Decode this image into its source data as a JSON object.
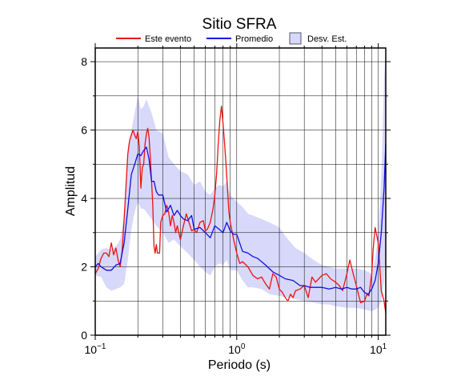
{
  "chart_data": {
    "type": "line",
    "title": "Sitio SFRA",
    "xlabel": "Periodo (s)",
    "ylabel": "Amplitud",
    "xscale": "log",
    "xlim": [
      0.1,
      11.3
    ],
    "ylim": [
      0,
      8.4
    ],
    "grid": true,
    "legend_position": "top",
    "x_ticks": [
      {
        "value": 0.1,
        "base": "10",
        "exp": "−1"
      },
      {
        "value": 1,
        "base": "10",
        "exp": "0"
      },
      {
        "value": 10,
        "base": "10",
        "exp": "1"
      }
    ],
    "y_ticks": [
      {
        "value": 0,
        "label": "0"
      },
      {
        "value": 2,
        "label": "2"
      },
      {
        "value": 4,
        "label": "4"
      },
      {
        "value": 6,
        "label": "6"
      },
      {
        "value": 8,
        "label": "8"
      }
    ],
    "legend": {
      "event": "Este evento",
      "mean": "Promedio",
      "std": "Desv. Est."
    },
    "colors": {
      "event": "#ee1111",
      "mean": "#1111dd",
      "std_fill": "#d8d8fa",
      "std_edge": "#555577",
      "grid": "#000000"
    },
    "series": [
      {
        "name": "Este evento",
        "x": [
          0.1,
          0.105,
          0.11,
          0.115,
          0.12,
          0.125,
          0.13,
          0.135,
          0.14,
          0.145,
          0.15,
          0.155,
          0.16,
          0.165,
          0.17,
          0.175,
          0.18,
          0.185,
          0.19,
          0.195,
          0.2,
          0.205,
          0.21,
          0.215,
          0.22,
          0.225,
          0.23,
          0.235,
          0.24,
          0.245,
          0.25,
          0.255,
          0.26,
          0.265,
          0.27,
          0.275,
          0.28,
          0.285,
          0.29,
          0.3,
          0.31,
          0.32,
          0.33,
          0.34,
          0.35,
          0.36,
          0.37,
          0.38,
          0.4,
          0.42,
          0.44,
          0.46,
          0.48,
          0.5,
          0.52,
          0.55,
          0.58,
          0.6,
          0.62,
          0.65,
          0.68,
          0.7,
          0.72,
          0.74,
          0.76,
          0.78,
          0.8,
          0.82,
          0.84,
          0.86,
          0.88,
          0.9,
          0.92,
          0.95,
          1.0,
          1.05,
          1.1,
          1.2,
          1.3,
          1.4,
          1.5,
          1.6,
          1.7,
          1.8,
          1.9,
          2.0,
          2.1,
          2.2,
          2.3,
          2.4,
          2.5,
          2.6,
          2.8,
          3.0,
          3.2,
          3.4,
          3.6,
          3.8,
          4.0,
          4.3,
          4.6,
          5.0,
          5.3,
          5.6,
          6.0,
          6.3,
          6.6,
          7.0,
          7.5,
          8.0,
          8.3,
          8.6,
          8.8,
          9.0,
          9.2,
          9.5,
          10.0,
          10.5,
          11.0,
          11.3
        ],
        "values": [
          1.8,
          1.95,
          2.25,
          2.4,
          2.4,
          2.3,
          2.7,
          2.35,
          2.55,
          2.2,
          2.0,
          2.5,
          3.4,
          4.4,
          5.3,
          5.7,
          5.85,
          6.0,
          5.85,
          5.75,
          5.95,
          5.5,
          4.3,
          4.9,
          5.0,
          5.6,
          5.9,
          6.05,
          5.8,
          5.2,
          4.5,
          3.8,
          2.6,
          2.4,
          2.65,
          2.4,
          2.4,
          2.4,
          3.3,
          3.5,
          3.55,
          3.8,
          3.6,
          3.2,
          3.5,
          3.3,
          3.0,
          3.2,
          2.8,
          3.2,
          3.55,
          3.3,
          3.05,
          3.1,
          3.0,
          3.3,
          3.35,
          3.05,
          3.1,
          3.3,
          3.7,
          4.1,
          4.7,
          5.6,
          6.3,
          6.7,
          6.2,
          5.6,
          5.0,
          4.3,
          3.6,
          3.3,
          3.1,
          2.8,
          2.4,
          2.1,
          2.15,
          2.0,
          1.75,
          1.65,
          1.7,
          1.5,
          1.35,
          1.8,
          1.7,
          1.35,
          1.25,
          1.1,
          1.0,
          1.2,
          1.1,
          1.3,
          1.35,
          1.45,
          1.1,
          1.7,
          1.55,
          1.65,
          1.75,
          1.8,
          1.65,
          1.55,
          1.45,
          1.3,
          1.8,
          2.2,
          1.85,
          1.45,
          0.95,
          1.0,
          1.2,
          1.15,
          1.5,
          1.8,
          2.5,
          3.15,
          2.7,
          1.3,
          1.0,
          0.65
        ]
      },
      {
        "name": "Promedio",
        "x": [
          0.1,
          0.105,
          0.11,
          0.12,
          0.13,
          0.14,
          0.15,
          0.16,
          0.17,
          0.18,
          0.19,
          0.2,
          0.21,
          0.22,
          0.23,
          0.24,
          0.25,
          0.26,
          0.27,
          0.28,
          0.3,
          0.32,
          0.34,
          0.36,
          0.38,
          0.4,
          0.42,
          0.45,
          0.48,
          0.5,
          0.55,
          0.6,
          0.65,
          0.7,
          0.75,
          0.8,
          0.85,
          0.9,
          0.95,
          1.0,
          1.1,
          1.2,
          1.3,
          1.4,
          1.5,
          1.6,
          1.8,
          2.0,
          2.2,
          2.5,
          2.8,
          3.0,
          3.3,
          3.6,
          4.0,
          4.5,
          5.0,
          5.5,
          6.0,
          6.5,
          7.0,
          7.5,
          8.0,
          8.5,
          9.0,
          9.5,
          10.0,
          10.5,
          11.0,
          11.3
        ],
        "values": [
          2.0,
          2.1,
          2.0,
          1.9,
          1.9,
          2.05,
          2.1,
          2.7,
          3.7,
          4.7,
          5.0,
          5.3,
          5.25,
          5.4,
          5.5,
          5.15,
          4.5,
          4.5,
          4.2,
          4.1,
          4.1,
          3.6,
          3.8,
          3.5,
          3.65,
          3.5,
          3.4,
          3.35,
          3.5,
          3.1,
          3.15,
          3.0,
          2.85,
          3.2,
          3.1,
          3.0,
          3.3,
          3.05,
          2.95,
          2.95,
          2.45,
          2.4,
          2.3,
          2.25,
          2.15,
          2.05,
          1.85,
          1.75,
          1.65,
          1.6,
          1.45,
          1.45,
          1.4,
          1.4,
          1.4,
          1.35,
          1.4,
          1.35,
          1.4,
          1.35,
          1.35,
          1.4,
          1.25,
          1.2,
          1.35,
          1.6,
          2.1,
          3.0,
          4.3,
          5.6
        ]
      }
    ],
    "std_band": {
      "name": "Desv. Est.",
      "x": [
        0.1,
        0.11,
        0.12,
        0.13,
        0.14,
        0.15,
        0.16,
        0.17,
        0.18,
        0.19,
        0.2,
        0.21,
        0.22,
        0.23,
        0.25,
        0.27,
        0.3,
        0.33,
        0.36,
        0.4,
        0.45,
        0.5,
        0.55,
        0.6,
        0.65,
        0.7,
        0.75,
        0.8,
        0.85,
        0.9,
        1.0,
        1.1,
        1.2,
        1.3,
        1.5,
        1.7,
        2.0,
        2.3,
        2.6,
        3.0,
        3.5,
        4.0,
        4.5,
        5.0,
        6.0,
        7.0,
        8.0,
        9.0,
        9.5,
        10.0,
        10.5,
        11.0,
        11.3
      ],
      "upper": [
        2.3,
        2.5,
        2.55,
        2.5,
        2.6,
        2.8,
        3.5,
        5.5,
        6.0,
        6.5,
        7.0,
        6.6,
        6.7,
        6.9,
        6.5,
        6.0,
        5.9,
        5.2,
        5.0,
        4.8,
        4.7,
        4.4,
        4.5,
        4.2,
        4.1,
        4.3,
        4.4,
        4.35,
        4.5,
        4.1,
        3.9,
        3.75,
        3.55,
        3.5,
        3.4,
        3.3,
        3.15,
        2.8,
        2.55,
        2.4,
        2.2,
        2.05,
        2.0,
        1.95,
        1.95,
        1.95,
        1.9,
        1.8,
        2.2,
        3.0,
        4.6,
        7.5,
        8.3
      ],
      "lower": [
        1.75,
        1.7,
        1.4,
        1.3,
        1.35,
        1.4,
        1.5,
        2.2,
        3.1,
        3.6,
        3.9,
        3.7,
        3.7,
        3.6,
        3.4,
        3.2,
        3.0,
        2.7,
        2.8,
        2.6,
        2.4,
        2.2,
        2.0,
        1.85,
        1.75,
        2.0,
        2.1,
        2.05,
        2.2,
        1.9,
        1.9,
        1.6,
        1.4,
        1.4,
        1.35,
        1.2,
        1.15,
        1.1,
        1.05,
        1.0,
        0.95,
        0.9,
        0.9,
        0.85,
        0.8,
        0.8,
        0.75,
        0.7,
        0.75,
        0.8,
        1.0,
        1.6,
        2.6
      ]
    }
  }
}
